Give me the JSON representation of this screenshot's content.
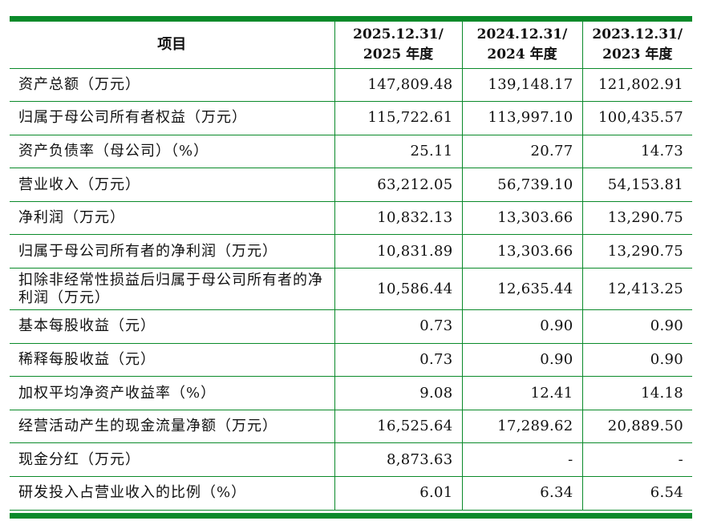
{
  "table": {
    "header": {
      "item": "项目",
      "years": [
        {
          "line1": "2025.12.31/",
          "line2": "2025 年度"
        },
        {
          "line1": "2024.12.31/",
          "line2": "2024 年度"
        },
        {
          "line1": "2023.12.31/",
          "line2": "2023 年度"
        }
      ]
    },
    "rows": [
      {
        "label": "资产总额（万元）",
        "values": [
          "147,809.48",
          "139,148.17",
          "121,802.91"
        ]
      },
      {
        "label": "归属于母公司所有者权益（万元）",
        "values": [
          "115,722.61",
          "113,997.10",
          "100,435.57"
        ]
      },
      {
        "label": "资产负债率（母公司）（%）",
        "values": [
          "25.11",
          "20.77",
          "14.73"
        ]
      },
      {
        "label": "营业收入（万元）",
        "values": [
          "63,212.05",
          "56,739.10",
          "54,153.81"
        ]
      },
      {
        "label": "净利润（万元）",
        "values": [
          "10,832.13",
          "13,303.66",
          "13,290.75"
        ]
      },
      {
        "label": "归属于母公司所有者的净利润（万元）",
        "values": [
          "10,831.89",
          "13,303.66",
          "13,290.75"
        ]
      },
      {
        "label": "扣除非经常性损益后归属于母公司所有者的净利润（万元）",
        "values": [
          "10,586.44",
          "12,635.44",
          "12,413.25"
        ]
      },
      {
        "label": "基本每股收益（元）",
        "values": [
          "0.73",
          "0.90",
          "0.90"
        ]
      },
      {
        "label": "稀释每股收益（元）",
        "values": [
          "0.73",
          "0.90",
          "0.90"
        ]
      },
      {
        "label": "加权平均净资产收益率（%）",
        "values": [
          "9.08",
          "12.41",
          "14.18"
        ]
      },
      {
        "label": "经营活动产生的现金流量净额（万元）",
        "values": [
          "16,525.64",
          "17,289.62",
          "20,889.50"
        ]
      },
      {
        "label": "现金分红（万元）",
        "values": [
          "8,873.63",
          "-",
          "-"
        ]
      },
      {
        "label": "研发投入占营业收入的比例（%）",
        "values": [
          "6.01",
          "6.34",
          "6.54"
        ]
      }
    ],
    "rule_color": "#0a8a2a"
  }
}
